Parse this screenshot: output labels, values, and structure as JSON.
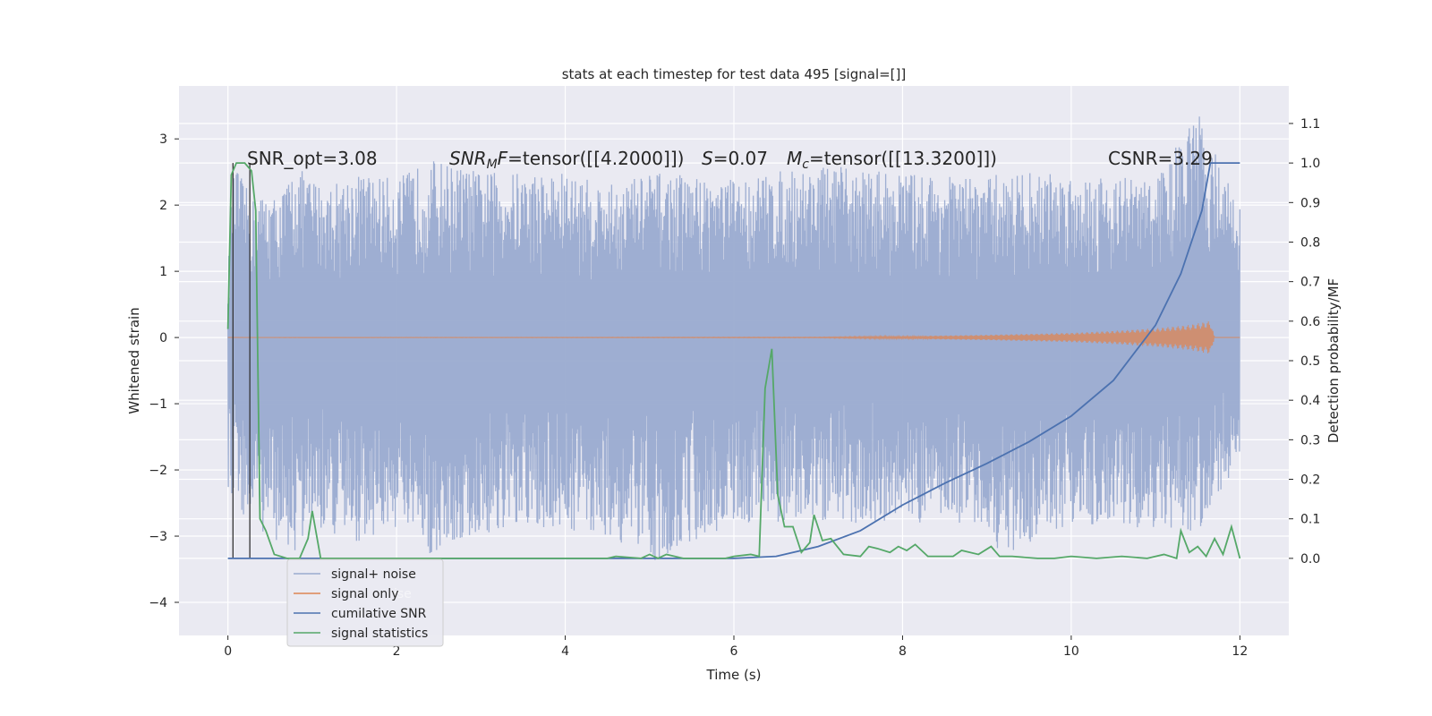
{
  "chart_data": {
    "type": "line",
    "title": "stats at each timestep for test data 495 [signal=[]]",
    "xlabel": "Time (s)",
    "ylabel_left": "Whitened strain",
    "ylabel_right": "Detection probability/MF",
    "xlim": [
      -0.58,
      12.58
    ],
    "ylim_left": [
      -4.5,
      3.8
    ],
    "ylim_right": [
      -0.195,
      1.195
    ],
    "x_ticks": [
      0,
      2,
      4,
      6,
      8,
      10,
      12
    ],
    "x_tick_labels": [
      "0",
      "2",
      "4",
      "6",
      "8",
      "10",
      "12"
    ],
    "y_left_ticks": [
      3,
      2,
      1,
      0,
      -1,
      -2,
      -3,
      -4
    ],
    "y_left_tick_labels": [
      "3",
      "2",
      "1",
      "0",
      "−1",
      "−2",
      "−3",
      "−4"
    ],
    "y_right_ticks": [
      1.1,
      1.0,
      0.9,
      0.8,
      0.7,
      0.6,
      0.5,
      0.4,
      0.3,
      0.2,
      0.1,
      0.0
    ],
    "y_right_tick_labels": [
      "1.1",
      "1.0",
      "0.9",
      "0.8",
      "0.7",
      "0.6",
      "0.5",
      "0.4",
      "0.3",
      "0.2",
      "0.1",
      "0.0"
    ],
    "annotations": {
      "snr_opt": "SNR_opt=3.08",
      "snr_mf_sym": "SNR",
      "snr_mf_sub": "M",
      "snr_mf_f": "F",
      "snr_mf_val": "=tensor([[4.2000]])",
      "s_sym": "S",
      "s_val": "=0.07",
      "mc_sym": "M",
      "mc_sub": "c",
      "mc_val": "=tensor([[13.3200]])",
      "csnr": "CSNR=3.29"
    },
    "vlines": [
      0.06,
      0.26
    ],
    "legend": {
      "placement": "lower-left",
      "entries": [
        {
          "label": "signal+ noise",
          "color": "#9aabd0"
        },
        {
          "label": "signal only",
          "color": "#dd8452"
        },
        {
          "label": "cumilative SNR",
          "color": "#4c72b0"
        },
        {
          "label": "signal statistics",
          "color": "#55a868"
        }
      ],
      "ghost_text": "ise"
    },
    "series": [
      {
        "name": "signal+ noise",
        "axis": "left",
        "color": "#9aabd0",
        "note": "dense noise band, sampled envelope",
        "x": [
          0.0,
          0.05,
          0.1,
          0.2,
          0.3,
          0.45,
          0.6,
          0.8,
          1.0,
          1.2,
          1.5,
          2.0,
          2.4,
          3.0,
          4.0,
          4.5,
          5.0,
          6.0,
          7.0,
          8.0,
          9.0,
          9.15,
          10.0,
          11.0,
          11.5,
          12.0
        ],
        "upper": [
          1.0,
          2.3,
          2.6,
          2.3,
          2.1,
          2.2,
          2.1,
          2.6,
          2.4,
          2.3,
          2.5,
          2.4,
          2.7,
          2.5,
          2.5,
          2.3,
          2.5,
          2.4,
          2.6,
          2.5,
          2.4,
          2.5,
          2.5,
          2.4,
          3.4,
          2.0
        ],
        "lower": [
          -2.4,
          -2.6,
          -2.2,
          -2.9,
          -2.8,
          -3.0,
          -3.1,
          -3.3,
          -2.8,
          -3.0,
          -3.1,
          -2.9,
          -3.3,
          -3.0,
          -2.9,
          -3.0,
          -3.4,
          -2.8,
          -2.8,
          -2.8,
          -2.8,
          -3.35,
          -2.8,
          -2.9,
          -3.0,
          -1.8
        ]
      },
      {
        "name": "signal only",
        "axis": "left",
        "color": "#dd8452",
        "x": [
          0,
          7.0,
          8.0,
          9.0,
          10.0,
          10.5,
          11.0,
          11.4,
          11.65,
          11.7,
          12.0
        ],
        "amplitude": [
          0,
          0.005,
          0.02,
          0.04,
          0.07,
          0.1,
          0.14,
          0.19,
          0.25,
          0.0,
          0.0
        ]
      },
      {
        "name": "cumilative SNR",
        "axis": "right",
        "color": "#4c72b0",
        "x": [
          0,
          6.0,
          6.5,
          7.0,
          7.5,
          8.0,
          8.5,
          9.0,
          9.5,
          10.0,
          10.5,
          11.0,
          11.3,
          11.55,
          11.65,
          12.0
        ],
        "y": [
          0,
          0,
          0.005,
          0.03,
          0.07,
          0.135,
          0.19,
          0.24,
          0.295,
          0.36,
          0.45,
          0.59,
          0.72,
          0.88,
          1.0,
          1.0
        ]
      },
      {
        "name": "signal statistics",
        "axis": "right",
        "color": "#55a868",
        "x": [
          0,
          0.04,
          0.1,
          0.2,
          0.28,
          0.33,
          0.38,
          0.45,
          0.55,
          0.7,
          0.85,
          0.95,
          1.0,
          1.1,
          1.3,
          2.0,
          3.0,
          4.0,
          4.5,
          4.6,
          4.9,
          5.0,
          5.1,
          5.2,
          5.4,
          5.6,
          5.9,
          6.0,
          6.2,
          6.3,
          6.37,
          6.45,
          6.52,
          6.6,
          6.7,
          6.8,
          6.9,
          6.95,
          7.05,
          7.15,
          7.3,
          7.5,
          7.6,
          7.7,
          7.85,
          7.95,
          8.05,
          8.15,
          8.3,
          8.6,
          8.7,
          8.9,
          9.05,
          9.15,
          9.3,
          9.6,
          9.8,
          10.0,
          10.3,
          10.6,
          10.9,
          11.1,
          11.25,
          11.3,
          11.4,
          11.5,
          11.6,
          11.7,
          11.8,
          11.9,
          12.0
        ],
        "y": [
          0.58,
          0.97,
          1.0,
          1.0,
          0.98,
          0.88,
          0.1,
          0.07,
          0.01,
          0.0,
          0.0,
          0.05,
          0.12,
          0.0,
          0.0,
          0.0,
          0.0,
          0.0,
          0.0,
          0.005,
          0.0,
          0.01,
          0.0,
          0.01,
          0.0,
          0.0,
          0.0,
          0.005,
          0.01,
          0.005,
          0.43,
          0.53,
          0.16,
          0.08,
          0.08,
          0.015,
          0.04,
          0.11,
          0.045,
          0.05,
          0.01,
          0.005,
          0.03,
          0.025,
          0.015,
          0.03,
          0.02,
          0.035,
          0.005,
          0.005,
          0.02,
          0.01,
          0.03,
          0.005,
          0.005,
          0.0,
          0.0,
          0.005,
          0.0,
          0.005,
          0.0,
          0.01,
          0.0,
          0.07,
          0.015,
          0.03,
          0.005,
          0.05,
          0.01,
          0.08,
          0.0
        ]
      }
    ]
  }
}
